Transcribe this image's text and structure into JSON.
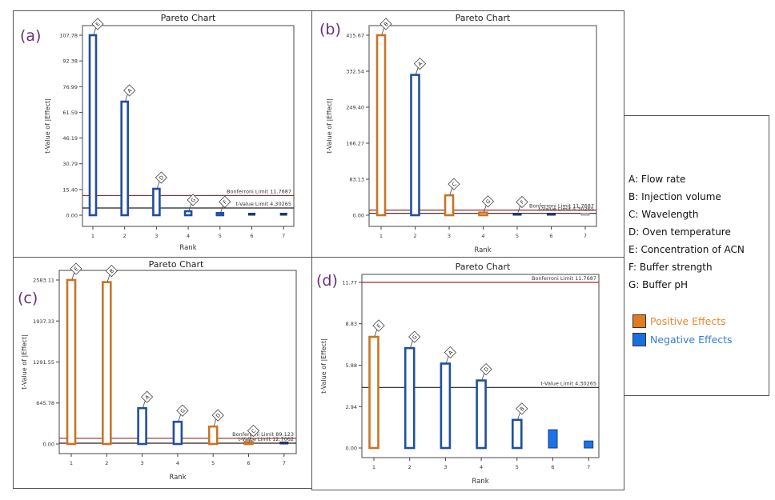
{
  "legend": {
    "factors": [
      "A: Flow rate",
      "B: Injection volume",
      "C: Wavelength",
      "D: Oven temperature",
      "E: Concentration of ACN",
      "F: Buffer strength",
      "G: Buffer pH"
    ],
    "effects": [
      {
        "label": "Positive Effects",
        "color": "#e07b1f",
        "text_color": "#e58a2e"
      },
      {
        "label": "Negative Effects",
        "color": "#1a6fe0",
        "text_color": "#2f7fd6"
      }
    ]
  },
  "colors": {
    "positive": "#c87427",
    "negative": "#1f4fa0",
    "negative_fill": "#1a73e8",
    "bonferroni_line": "#9b2a2a",
    "tvalue_line": "#222222"
  },
  "chart_data": [
    {
      "panel": "(a)",
      "type": "bar",
      "title": "Pareto Chart",
      "xlabel": "Rank",
      "ylabel": "t-Value of |Effect|",
      "categories": [
        "1",
        "2",
        "3",
        "4",
        "5",
        "6",
        "7"
      ],
      "yticks": [
        "0.00",
        "15.40",
        "30.79",
        "46.19",
        "61.59",
        "76.99",
        "92.38",
        "107.78"
      ],
      "ylim": [
        0,
        107.78
      ],
      "bars": [
        {
          "rank": 1,
          "factor": "E",
          "value": 107.78,
          "effect": "negative",
          "style": "outline"
        },
        {
          "rank": 2,
          "factor": "A",
          "value": 68.0,
          "effect": "negative",
          "style": "outline"
        },
        {
          "rank": 3,
          "factor": "D",
          "value": 15.8,
          "effect": "negative",
          "style": "outline"
        },
        {
          "rank": 4,
          "factor": "G",
          "value": 2.4,
          "effect": "negative",
          "style": "outline"
        },
        {
          "rank": 5,
          "factor": "F",
          "value": 1.3,
          "effect": "negative",
          "style": "outline"
        },
        {
          "rank": 6,
          "factor": "",
          "value": 0.7,
          "effect": "negative",
          "style": "dark"
        },
        {
          "rank": 7,
          "factor": "",
          "value": 0.7,
          "effect": "negative",
          "style": "dark"
        }
      ],
      "limits": [
        {
          "label": "Bonferroni Limit 11.7687",
          "value": 11.7687,
          "kind": "bonferroni"
        },
        {
          "label": "t-Value Limit 4.30265",
          "value": 4.30265,
          "kind": "tvalue"
        }
      ]
    },
    {
      "panel": "(b)",
      "type": "bar",
      "title": "Pareto Chart",
      "xlabel": "Rank",
      "ylabel": "t-Value of |Effect|",
      "categories": [
        "1",
        "2",
        "3",
        "4",
        "5",
        "6",
        "7"
      ],
      "yticks": [
        "0.00",
        "83.13",
        "166.27",
        "249.40",
        "332.54",
        "415.67"
      ],
      "ylim": [
        0,
        415.67
      ],
      "bars": [
        {
          "rank": 1,
          "factor": "B",
          "value": 415.67,
          "effect": "positive",
          "style": "outline"
        },
        {
          "rank": 2,
          "factor": "A",
          "value": 324.0,
          "effect": "negative",
          "style": "outline"
        },
        {
          "rank": 3,
          "factor": "C",
          "value": 46.0,
          "effect": "positive",
          "style": "outline"
        },
        {
          "rank": 4,
          "factor": "G",
          "value": 6.0,
          "effect": "positive",
          "style": "outline"
        },
        {
          "rank": 5,
          "factor": "F",
          "value": 2.5,
          "effect": "negative",
          "style": "dark"
        },
        {
          "rank": 6,
          "factor": "",
          "value": 1.5,
          "effect": "negative",
          "style": "dark"
        },
        {
          "rank": 7,
          "factor": "",
          "value": 1.0,
          "effect": "negative",
          "style": "gray"
        }
      ],
      "limits": [
        {
          "label": "Bonferroni Limit 11.7687",
          "value": 11.7687,
          "kind": "bonferroni"
        },
        {
          "label": "t-Value Limit 4.30265",
          "value": 4.30265,
          "kind": "tvalue"
        }
      ]
    },
    {
      "panel": "(c)",
      "type": "bar",
      "title": "Pareto Chart",
      "xlabel": "Rank",
      "ylabel": "t-Value of |Effect|",
      "categories": [
        "1",
        "2",
        "3",
        "4",
        "5",
        "6",
        "7"
      ],
      "yticks": [
        "0.00",
        "645.78",
        "1291.55",
        "1937.33",
        "2583.11"
      ],
      "ylim": [
        0,
        2583.11
      ],
      "bars": [
        {
          "rank": 1,
          "factor": "E",
          "value": 2583.11,
          "effect": "positive",
          "style": "outline"
        },
        {
          "rank": 2,
          "factor": "B",
          "value": 2550.0,
          "effect": "positive",
          "style": "outline"
        },
        {
          "rank": 3,
          "factor": "A",
          "value": 565.0,
          "effect": "negative",
          "style": "outline"
        },
        {
          "rank": 4,
          "factor": "G",
          "value": 350.0,
          "effect": "negative",
          "style": "outline"
        },
        {
          "rank": 5,
          "factor": "D",
          "value": 275.0,
          "effect": "positive",
          "style": "outline"
        },
        {
          "rank": 6,
          "factor": "C",
          "value": 28.0,
          "effect": "positive",
          "style": "outline"
        },
        {
          "rank": 7,
          "factor": "",
          "value": 6.0,
          "effect": "negative",
          "style": "dark"
        }
      ],
      "limits": [
        {
          "label": "Bonferroni Limit 89.123",
          "value": 89.123,
          "kind": "bonferroni"
        },
        {
          "label": "t-Value Limit 12.7062",
          "value": 12.7062,
          "kind": "tvalue"
        }
      ]
    },
    {
      "panel": "(d)",
      "type": "bar",
      "title": "Pareto Chart",
      "xlabel": "Rank",
      "ylabel": "t-Value of |Effect|",
      "categories": [
        "1",
        "2",
        "3",
        "4",
        "5",
        "6",
        "7"
      ],
      "yticks": [
        "0.00",
        "2.94",
        "5.88",
        "8.83",
        "11.77"
      ],
      "ylim": [
        0,
        11.77
      ],
      "bars": [
        {
          "rank": 1,
          "factor": "E",
          "value": 7.9,
          "effect": "positive",
          "style": "outline"
        },
        {
          "rank": 2,
          "factor": "G",
          "value": 7.1,
          "effect": "negative",
          "style": "outline"
        },
        {
          "rank": 3,
          "factor": "A",
          "value": 6.0,
          "effect": "negative",
          "style": "outline"
        },
        {
          "rank": 4,
          "factor": "D",
          "value": 4.8,
          "effect": "negative",
          "style": "outline"
        },
        {
          "rank": 5,
          "factor": "B",
          "value": 2.0,
          "effect": "negative",
          "style": "outline"
        },
        {
          "rank": 6,
          "factor": "",
          "value": 1.3,
          "effect": "negative",
          "style": "filled"
        },
        {
          "rank": 7,
          "factor": "",
          "value": 0.5,
          "effect": "negative",
          "style": "filled"
        }
      ],
      "limits": [
        {
          "label": "Bonferroni Limit 11.7687",
          "value": 11.7687,
          "kind": "bonferroni"
        },
        {
          "label": "t-Value Limit 4.30265",
          "value": 4.30265,
          "kind": "tvalue"
        }
      ]
    }
  ]
}
